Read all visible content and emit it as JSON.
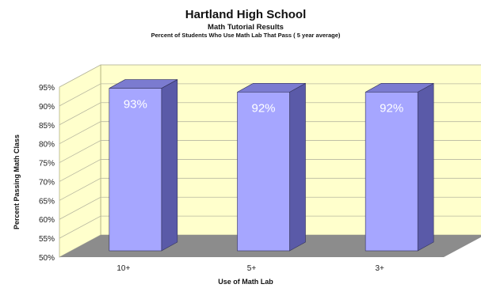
{
  "chart_data": {
    "type": "bar",
    "title": "Hartland High School",
    "subtitle": "Math Tutorial Results",
    "subtitle2": "Percent of Students Who Use Math Lab That Pass ( 5 year average)",
    "xlabel": "Use of Math Lab",
    "ylabel": "Percent Passing Math Class",
    "categories": [
      "10+",
      "5+",
      "3+"
    ],
    "values": [
      93,
      92,
      92
    ],
    "data_labels": [
      "93%",
      "92%",
      "92%"
    ],
    "ylim": [
      50,
      95
    ],
    "yticks": [
      "50%",
      "55%",
      "60%",
      "65%",
      "70%",
      "75%",
      "80%",
      "85%",
      "90%",
      "95%"
    ],
    "grid": true,
    "three_d": true,
    "colors": {
      "bar_front": "#a6a6ff",
      "bar_side": "#5a5aa8",
      "bar_top": "#7b7bd0",
      "back_wall": "#ffffcc",
      "floor": "#8c8c8c",
      "gridline": "#b8b8a0"
    }
  }
}
